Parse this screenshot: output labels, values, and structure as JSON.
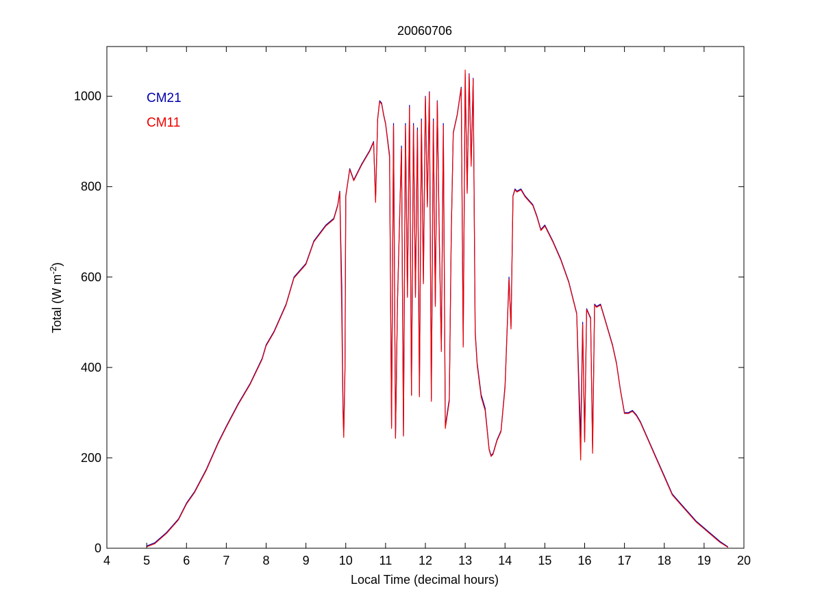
{
  "chart_data": {
    "type": "line",
    "title": "20060706",
    "xlabel": "Local Time (decimal hours)",
    "ylabel_main": "Total (W m",
    "ylabel_sup": "-2",
    "ylabel_tail": ")",
    "xlim": [
      4,
      20
    ],
    "ylim": [
      0,
      1110
    ],
    "xticks": [
      4,
      5,
      6,
      7,
      8,
      9,
      10,
      11,
      12,
      13,
      14,
      15,
      16,
      17,
      18,
      19,
      20
    ],
    "yticks": [
      0,
      200,
      400,
      600,
      800,
      1000
    ],
    "grid": false,
    "legend_position": "top-left",
    "series": [
      {
        "name": "CM21",
        "color": "#0000aa",
        "x": [
          5.0,
          5.2,
          5.5,
          5.8,
          6.0,
          6.2,
          6.5,
          6.8,
          7.0,
          7.3,
          7.6,
          7.9,
          8.0,
          8.2,
          8.5,
          8.7,
          9.0,
          9.2,
          9.5,
          9.7,
          9.8,
          9.85,
          9.9,
          9.93,
          9.95,
          9.98,
          10.0,
          10.1,
          10.2,
          10.4,
          10.6,
          10.7,
          10.75,
          10.8,
          10.85,
          10.9,
          10.95,
          11.0,
          11.1,
          11.15,
          11.2,
          11.25,
          11.3,
          11.4,
          11.45,
          11.5,
          11.55,
          11.6,
          11.65,
          11.7,
          11.75,
          11.8,
          11.85,
          11.9,
          11.95,
          12.0,
          12.05,
          12.1,
          12.15,
          12.2,
          12.25,
          12.3,
          12.35,
          12.4,
          12.45,
          12.5,
          12.6,
          12.65,
          12.7,
          12.8,
          12.9,
          12.95,
          13.0,
          13.05,
          13.1,
          13.15,
          13.2,
          13.25,
          13.3,
          13.4,
          13.5,
          13.6,
          13.65,
          13.7,
          13.8,
          13.9,
          14.0,
          14.1,
          14.15,
          14.2,
          14.25,
          14.3,
          14.4,
          14.5,
          14.6,
          14.7,
          14.8,
          14.9,
          15.0,
          15.2,
          15.4,
          15.6,
          15.8,
          15.9,
          15.95,
          16.0,
          16.05,
          16.1,
          16.15,
          16.2,
          16.25,
          16.3,
          16.4,
          16.5,
          16.6,
          16.7,
          16.8,
          16.9,
          17.0,
          17.1,
          17.2,
          17.3,
          17.4,
          17.6,
          17.8,
          18.0,
          18.2,
          18.4,
          18.6,
          18.8,
          19.0,
          19.2,
          19.4,
          19.6
        ],
        "y": [
          5,
          12,
          35,
          65,
          100,
          125,
          175,
          235,
          270,
          320,
          365,
          420,
          450,
          480,
          540,
          600,
          630,
          680,
          715,
          730,
          760,
          790,
          580,
          320,
          250,
          400,
          780,
          840,
          815,
          850,
          880,
          900,
          770,
          950,
          990,
          985,
          960,
          940,
          870,
          270,
          940,
          245,
          550,
          890,
          250,
          940,
          560,
          980,
          340,
          940,
          560,
          930,
          340,
          950,
          590,
          1000,
          760,
          1010,
          330,
          950,
          540,
          990,
          690,
          440,
          940,
          270,
          330,
          700,
          920,
          960,
          1020,
          450,
          1050,
          790,
          1050,
          850,
          1040,
          480,
          410,
          340,
          310,
          220,
          205,
          210,
          240,
          260,
          360,
          600,
          490,
          780,
          795,
          790,
          795,
          780,
          770,
          760,
          735,
          705,
          715,
          680,
          640,
          590,
          520,
          245,
          500,
          240,
          530,
          520,
          510,
          220,
          540,
          535,
          540,
          510,
          480,
          450,
          410,
          350,
          300,
          300,
          305,
          295,
          280,
          240,
          200,
          160,
          120,
          100,
          80,
          60,
          45,
          30,
          15,
          3
        ]
      },
      {
        "name": "CM11",
        "color": "#ee0000",
        "x": [
          5.0,
          5.2,
          5.5,
          5.8,
          6.0,
          6.2,
          6.5,
          6.8,
          7.0,
          7.3,
          7.6,
          7.9,
          8.0,
          8.2,
          8.5,
          8.7,
          9.0,
          9.2,
          9.5,
          9.7,
          9.8,
          9.85,
          9.9,
          9.93,
          9.95,
          9.98,
          10.0,
          10.1,
          10.2,
          10.4,
          10.6,
          10.7,
          10.75,
          10.8,
          10.85,
          10.9,
          10.95,
          11.0,
          11.1,
          11.15,
          11.2,
          11.25,
          11.3,
          11.4,
          11.45,
          11.5,
          11.55,
          11.6,
          11.65,
          11.7,
          11.75,
          11.8,
          11.85,
          11.9,
          11.95,
          12.0,
          12.05,
          12.1,
          12.15,
          12.2,
          12.25,
          12.3,
          12.35,
          12.4,
          12.45,
          12.5,
          12.6,
          12.65,
          12.7,
          12.8,
          12.9,
          12.95,
          13.0,
          13.05,
          13.1,
          13.15,
          13.2,
          13.25,
          13.3,
          13.4,
          13.5,
          13.6,
          13.65,
          13.7,
          13.8,
          13.9,
          14.0,
          14.1,
          14.15,
          14.2,
          14.25,
          14.3,
          14.4,
          14.5,
          14.6,
          14.7,
          14.8,
          14.9,
          15.0,
          15.2,
          15.4,
          15.6,
          15.8,
          15.9,
          15.95,
          16.0,
          16.05,
          16.1,
          16.15,
          16.2,
          16.25,
          16.3,
          16.4,
          16.5,
          16.6,
          16.7,
          16.8,
          16.9,
          17.0,
          17.1,
          17.2,
          17.3,
          17.4,
          17.6,
          17.8,
          18.0,
          18.2,
          18.4,
          18.6,
          18.8,
          19.0,
          19.2,
          19.4,
          19.6
        ],
        "y": [
          3,
          10,
          33,
          63,
          98,
          123,
          173,
          233,
          268,
          318,
          363,
          418,
          448,
          478,
          538,
          598,
          628,
          678,
          713,
          728,
          758,
          788,
          520,
          300,
          245,
          390,
          778,
          838,
          813,
          848,
          878,
          898,
          765,
          948,
          988,
          983,
          958,
          938,
          865,
          265,
          935,
          243,
          545,
          885,
          248,
          935,
          555,
          975,
          338,
          935,
          555,
          925,
          335,
          945,
          585,
          998,
          755,
          1008,
          325,
          945,
          535,
          988,
          685,
          435,
          935,
          265,
          325,
          695,
          918,
          958,
          1018,
          445,
          1058,
          785,
          1048,
          845,
          1038,
          475,
          405,
          335,
          305,
          218,
          203,
          208,
          238,
          258,
          355,
          595,
          485,
          778,
          793,
          788,
          793,
          778,
          768,
          758,
          733,
          703,
          713,
          678,
          638,
          588,
          518,
          195,
          495,
          235,
          528,
          518,
          508,
          210,
          538,
          533,
          538,
          508,
          478,
          448,
          408,
          348,
          298,
          298,
          303,
          293,
          278,
          238,
          198,
          158,
          118,
          98,
          78,
          58,
          43,
          28,
          13,
          2
        ]
      }
    ]
  }
}
